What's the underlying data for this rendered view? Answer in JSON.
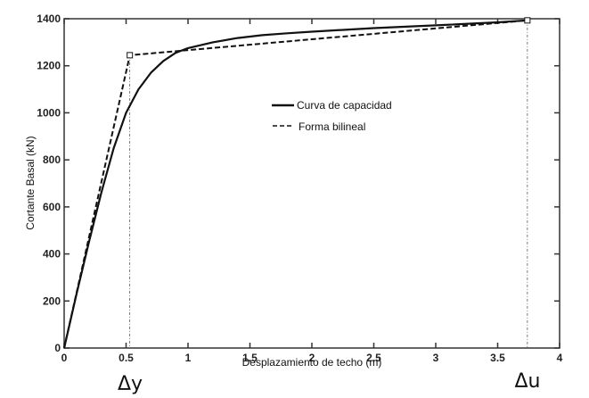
{
  "chart_data": {
    "type": "line",
    "title": "",
    "xlabel": "Desplazamiento de techo (m)",
    "ylabel": "Cortante Basal (kN)",
    "xlim": [
      0,
      4
    ],
    "ylim": [
      0,
      1400
    ],
    "xticks": [
      0,
      0.5,
      1,
      1.5,
      2,
      2.5,
      3,
      3.5,
      4
    ],
    "xtick_labels": [
      "0",
      "0.5",
      "1",
      "1.5",
      "2",
      "2.5",
      "3",
      "3.5",
      "4"
    ],
    "yticks": [
      0,
      200,
      400,
      600,
      800,
      1000,
      1200,
      1400
    ],
    "ytick_labels": [
      "0",
      "200",
      "400",
      "600",
      "800",
      "1000",
      "1200",
      "1400"
    ],
    "grid": false,
    "legend_position": "center",
    "series": [
      {
        "name": "Curva de capacidad",
        "style": "solid",
        "x": [
          0,
          0.1,
          0.2,
          0.3,
          0.4,
          0.5,
          0.6,
          0.7,
          0.8,
          0.9,
          1.0,
          1.2,
          1.4,
          1.6,
          1.8,
          2.0,
          2.5,
          3.0,
          3.5,
          3.74
        ],
        "y": [
          0,
          230,
          450,
          660,
          850,
          1000,
          1100,
          1170,
          1220,
          1255,
          1275,
          1300,
          1318,
          1330,
          1338,
          1345,
          1360,
          1372,
          1385,
          1393
        ]
      },
      {
        "name": "Forma bilineal",
        "style": "dashed",
        "x": [
          0,
          0.53,
          3.74
        ],
        "y": [
          0,
          1245,
          1393
        ]
      }
    ],
    "annotations": [
      {
        "text": "Δy",
        "x": 0.53,
        "note": "yield displacement marker with vertical dash-dot line"
      },
      {
        "text": "Δu",
        "x": 3.74,
        "note": "ultimate displacement marker with vertical dash-dot line"
      }
    ]
  },
  "labels": {
    "delta_y": "Δy",
    "delta_u": "Δu",
    "legend": [
      "Curva de capacidad",
      "Forma bilineal"
    ]
  }
}
